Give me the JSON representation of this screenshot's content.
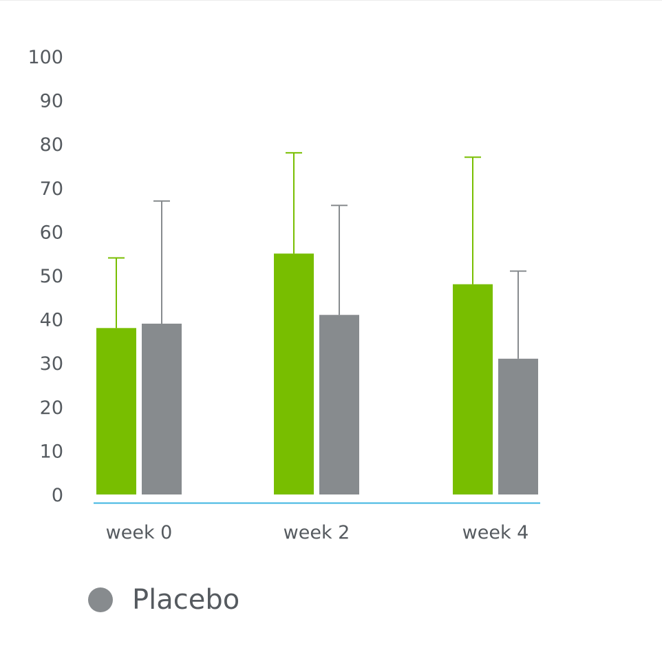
{
  "chart_data": {
    "type": "bar",
    "categories": [
      "week 0",
      "week 2",
      "week 4"
    ],
    "series": [
      {
        "values": [
          38,
          55,
          48
        ],
        "error_upper": [
          54,
          78,
          77
        ],
        "color": "#78be00"
      },
      {
        "name": "Placebo",
        "values": [
          39,
          41,
          31
        ],
        "error_upper": [
          67,
          66,
          51
        ],
        "color": "#878b8e"
      }
    ],
    "y_ticks": [
      "0",
      "10",
      "20",
      "30",
      "40",
      "50",
      "60",
      "70",
      "80",
      "90",
      "100"
    ],
    "ylim": [
      0,
      100
    ],
    "axis_color": "#3db4e0",
    "grid": false,
    "legend": {
      "placement": "bottom-left",
      "entries": [
        "Placebo"
      ]
    }
  }
}
